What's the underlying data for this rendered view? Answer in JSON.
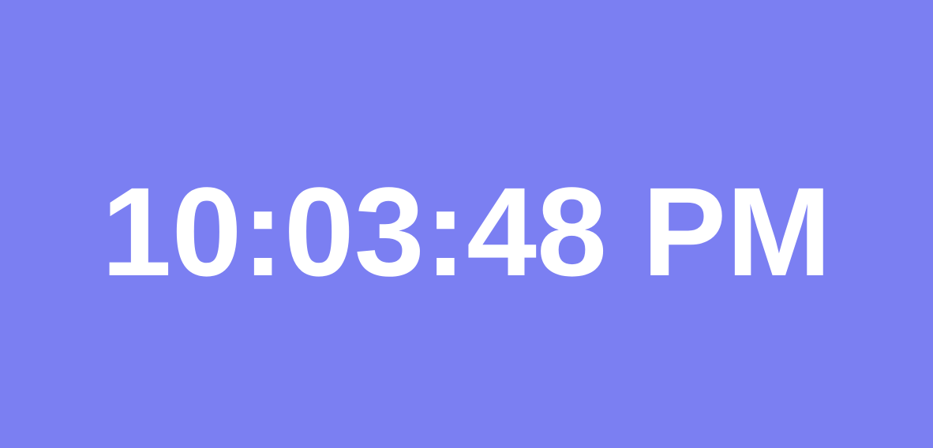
{
  "clock": {
    "time_text": "10:03:48 PM"
  },
  "colors": {
    "background": "#7b7ff2",
    "text": "#ffffff"
  }
}
